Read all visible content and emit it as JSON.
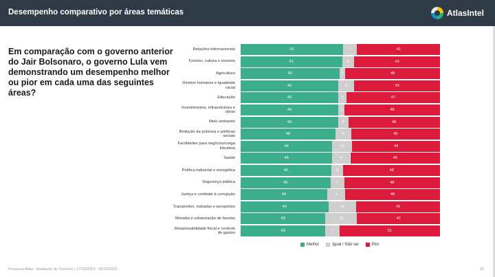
{
  "header": {
    "title": "Desempenho comparativo por áreas temáticas",
    "logo_text": "AtlasIntel"
  },
  "question": "Em comparação com o governo anterior do Jair Bolsonaro, o governo Lula vem demonstrando um desempenho melhor ou pior em cada uma das seguintes áreas?",
  "footer": {
    "source": "Pesquisa Atlas - Avaliação do Governo | 17/11/2023 - 20/11/2023",
    "page": "15"
  },
  "colors": {
    "melhor": "#3cae8c",
    "igual": "#cfcfcf",
    "pior": "#dc1b3c"
  },
  "chart_data": {
    "type": "bar",
    "orientation": "horizontal",
    "stacked": true,
    "categories": [
      "Relações internacionais",
      "Turismo, cultura e eventos",
      "Agricultura",
      "Direitos humanos e igualdade racial",
      "Educação",
      "Investimentos, infraestrutura e obras",
      "Meio ambiente",
      "Redução da pobreza e políticas sociais",
      "Facilidades para negócios/carga tributária",
      "Saúde",
      "Política industrial e energética",
      "Segurança pública",
      "Justiça e combate à corrupção",
      "Transportes, estradas e aeroportos",
      "Moradia e urbanização de favelas",
      "Responsabilidade fiscal e controle de gastos"
    ],
    "series": [
      {
        "name": "Melhor",
        "values": [
          52,
          51,
          50,
          49,
          49,
          49,
          49,
          48,
          46,
          46,
          45,
          45,
          44,
          44,
          43,
          43
        ]
      },
      {
        "name": "Igual / Não sei",
        "values": [
          7,
          6,
          3,
          8,
          4,
          3,
          5,
          8,
          10,
          9,
          6,
          7,
          9,
          14,
          16,
          7
        ]
      },
      {
        "name": "Pior",
        "values": [
          42,
          43,
          48,
          43,
          47,
          48,
          46,
          45,
          44,
          45,
          48,
          48,
          48,
          42,
          42,
          51
        ]
      }
    ],
    "legend": "bottom",
    "xlim": [
      0,
      100
    ]
  }
}
